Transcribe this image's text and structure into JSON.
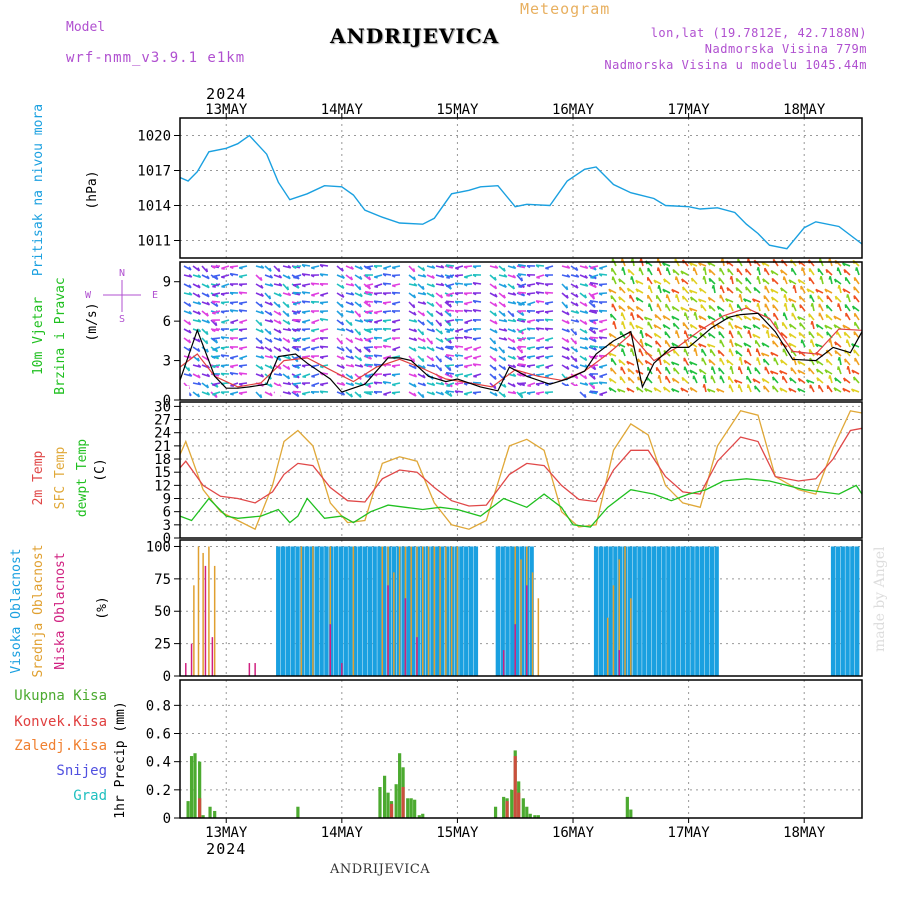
{
  "header": {
    "model_label": "Model",
    "model_name": "wrf-nmm_v3.9.1 e1km",
    "station": "ANDRIJEVICA",
    "meteogram_label": "Meteogram",
    "lonlat": "lon,lat (19.7812E, 42.7188N)",
    "altitude": "Nadmorska Visina 779m",
    "model_altitude": "Nadmorska Visina u modelu 1045.44m"
  },
  "footer": {
    "station": "ANDRIJEVICA",
    "credit": "made by Angel"
  },
  "colors": {
    "pressure": "#1aa0e0",
    "wind_speed": "#000000",
    "gust": "#e04040",
    "t2m": "#e04848",
    "tsfc": "#e0a838",
    "dewpoint": "#20c020",
    "cloud_high": "#1aa0e0",
    "cloud_mid": "#e0a030",
    "cloud_low": "#d02080",
    "rain_total": "#4caa30",
    "rain_conv": "#e04040",
    "rain_frozen": "#f08030",
    "snow": "#5050e0",
    "graupel": "#20c0c0"
  },
  "chart_data": [
    {
      "type": "line",
      "panel": "pressure",
      "ylabel_blue": "Pritisak na nivou mora",
      "ylabel_black": "(hPa)",
      "year": "2024",
      "x_labels": [
        "13MAY",
        "14MAY",
        "15MAY",
        "16MAY",
        "17MAY",
        "18MAY"
      ],
      "x_start_day": 12.6,
      "x_end_day": 18.5,
      "ylim": [
        1009.5,
        1021.5
      ],
      "yticks": [
        1011,
        1014,
        1017,
        1020
      ],
      "series": [
        {
          "x": [
            12.6,
            12.67,
            12.75,
            12.85,
            13.0,
            13.1,
            13.2,
            13.35,
            13.45,
            13.55,
            13.7,
            13.85,
            14.0,
            14.1,
            14.2,
            14.35,
            14.5,
            14.7,
            14.8,
            14.95,
            15.1,
            15.2,
            15.35,
            15.5,
            15.6,
            15.8,
            15.95,
            16.1,
            16.2,
            16.35,
            16.5,
            16.7,
            16.8,
            17.0,
            17.1,
            17.25,
            17.4,
            17.5,
            17.6,
            17.7,
            17.85,
            18.0,
            18.1,
            18.3,
            18.5
          ],
          "y": [
            1016.4,
            1016.1,
            1016.9,
            1018.6,
            1018.9,
            1019.3,
            1020.0,
            1018.4,
            1016.0,
            1014.5,
            1015.0,
            1015.7,
            1015.6,
            1014.9,
            1013.6,
            1013.0,
            1012.5,
            1012.4,
            1012.9,
            1015.0,
            1015.3,
            1015.6,
            1015.7,
            1013.9,
            1014.1,
            1014.0,
            1016.1,
            1017.1,
            1017.3,
            1015.8,
            1015.1,
            1014.6,
            1014.0,
            1013.9,
            1013.7,
            1013.8,
            1013.4,
            1012.4,
            1011.6,
            1010.6,
            1010.3,
            1012.1,
            1012.6,
            1012.2,
            1010.7
          ]
        }
      ]
    },
    {
      "type": "line",
      "panel": "wind",
      "ylabel_green": "10m Vjetar",
      "ylabel_green2": "Brzina i Pravac",
      "ylabel_black": "(m/s)",
      "compass": {
        "n": "N",
        "s": "S",
        "w": "W",
        "e": "E"
      },
      "ylim": [
        0,
        10.5
      ],
      "yticks": [
        0,
        3,
        6,
        9
      ],
      "series": [
        {
          "name": "speed",
          "x": [
            12.6,
            12.75,
            12.9,
            13.0,
            13.1,
            13.2,
            13.35,
            13.45,
            13.6,
            13.7,
            13.9,
            14.0,
            14.2,
            14.4,
            14.5,
            14.6,
            14.75,
            14.9,
            15.0,
            15.2,
            15.35,
            15.45,
            15.6,
            15.8,
            15.95,
            16.1,
            16.2,
            16.35,
            16.5,
            16.6,
            16.7,
            16.85,
            17.0,
            17.2,
            17.35,
            17.45,
            17.6,
            17.75,
            17.9,
            18.1,
            18.25,
            18.4,
            18.5
          ],
          "y": [
            1.5,
            5.3,
            1.8,
            0.9,
            0.9,
            1.0,
            1.2,
            3.3,
            3.5,
            2.8,
            1.6,
            0.6,
            1.2,
            3.2,
            3.2,
            3.0,
            1.8,
            1.4,
            1.6,
            1.0,
            0.7,
            2.5,
            1.8,
            1.2,
            1.6,
            2.2,
            3.5,
            4.5,
            5.2,
            1.0,
            2.8,
            4.0,
            4.0,
            5.5,
            6.3,
            6.5,
            6.6,
            5.2,
            3.1,
            3.0,
            4.0,
            3.6,
            5.2
          ]
        },
        {
          "name": "gust",
          "x": [
            12.6,
            12.75,
            12.9,
            13.1,
            13.3,
            13.5,
            13.7,
            13.9,
            14.1,
            14.3,
            14.5,
            14.7,
            14.9,
            15.1,
            15.3,
            15.5,
            15.7,
            15.9,
            16.1,
            16.3,
            16.5,
            16.7,
            16.9,
            17.1,
            17.3,
            17.5,
            17.7,
            17.9,
            18.1,
            18.3,
            18.5
          ],
          "y": [
            2.5,
            3.5,
            1.8,
            1.0,
            1.3,
            3.0,
            3.2,
            2.3,
            1.4,
            2.5,
            3.1,
            2.4,
            1.6,
            1.3,
            1.0,
            2.3,
            1.8,
            1.5,
            2.2,
            3.5,
            5.0,
            3.0,
            4.0,
            5.3,
            6.4,
            7.0,
            6.2,
            3.7,
            3.5,
            5.4,
            5.3
          ]
        }
      ]
    },
    {
      "type": "line",
      "panel": "temperature",
      "ylabel_red": "2m Temp",
      "ylabel_orange": "SFC Temp",
      "ylabel_green": "dewpt Temp",
      "ylabel_black": "(C)",
      "ylim": [
        0,
        31
      ],
      "yticks": [
        0,
        3,
        6,
        9,
        12,
        15,
        18,
        21,
        24,
        27,
        30
      ],
      "series": [
        {
          "name": "2m Temp",
          "x": [
            12.6,
            12.65,
            12.8,
            12.95,
            13.1,
            13.25,
            13.4,
            13.5,
            13.62,
            13.75,
            13.9,
            14.05,
            14.2,
            14.35,
            14.5,
            14.65,
            14.8,
            14.95,
            15.1,
            15.25,
            15.45,
            15.6,
            15.75,
            15.9,
            16.05,
            16.2,
            16.35,
            16.5,
            16.65,
            16.8,
            16.95,
            17.1,
            17.25,
            17.45,
            17.6,
            17.75,
            17.95,
            18.1,
            18.25,
            18.4,
            18.5
          ],
          "y": [
            16.0,
            17.5,
            12.0,
            9.5,
            9.0,
            8.0,
            10.5,
            14.5,
            17.0,
            16.5,
            11.5,
            8.5,
            8.2,
            13.5,
            15.5,
            15.0,
            11.5,
            8.5,
            7.3,
            7.5,
            14.5,
            17.0,
            16.5,
            12.0,
            8.8,
            8.3,
            15.5,
            20.0,
            20.0,
            14.0,
            10.5,
            10.0,
            17.5,
            23.0,
            22.0,
            14.0,
            13.0,
            13.5,
            18.0,
            24.5,
            25.0
          ]
        },
        {
          "name": "SFC Temp",
          "x": [
            12.6,
            12.65,
            12.8,
            12.95,
            13.1,
            13.25,
            13.4,
            13.5,
            13.62,
            13.75,
            13.9,
            14.05,
            14.2,
            14.35,
            14.5,
            14.65,
            14.8,
            14.95,
            15.1,
            15.25,
            15.45,
            15.6,
            15.75,
            15.9,
            16.05,
            16.2,
            16.35,
            16.5,
            16.65,
            16.8,
            16.95,
            17.1,
            17.25,
            17.45,
            17.6,
            17.75,
            17.95,
            18.1,
            18.25,
            18.4,
            18.5
          ],
          "y": [
            19.0,
            22.0,
            11.0,
            6.0,
            4.0,
            2.0,
            12.0,
            22.0,
            24.5,
            21.0,
            8.0,
            3.5,
            4.0,
            17.0,
            18.5,
            17.5,
            8.0,
            3.0,
            2.0,
            4.0,
            21.0,
            22.5,
            20.0,
            6.0,
            2.5,
            3.0,
            20.0,
            26.0,
            23.5,
            12.0,
            8.0,
            7.0,
            21.0,
            29.0,
            28.0,
            14.0,
            11.0,
            10.0,
            20.5,
            29.0,
            28.5
          ]
        },
        {
          "name": "dewpt Temp",
          "x": [
            12.6,
            12.7,
            12.85,
            13.0,
            13.1,
            13.3,
            13.45,
            13.55,
            13.62,
            13.7,
            13.85,
            14.0,
            14.1,
            14.25,
            14.4,
            14.55,
            14.7,
            14.85,
            15.0,
            15.2,
            15.4,
            15.6,
            15.75,
            15.9,
            16.0,
            16.15,
            16.3,
            16.5,
            16.7,
            16.85,
            17.0,
            17.15,
            17.3,
            17.5,
            17.7,
            17.85,
            18.0,
            18.15,
            18.3,
            18.45,
            18.5
          ],
          "y": [
            5.0,
            4.0,
            9.0,
            5.0,
            4.5,
            5.0,
            6.5,
            3.5,
            5.0,
            9.0,
            4.5,
            5.0,
            3.5,
            6.0,
            7.5,
            7.0,
            6.5,
            7.0,
            6.5,
            5.0,
            9.0,
            7.0,
            10.0,
            7.0,
            3.0,
            2.5,
            7.0,
            11.0,
            10.0,
            8.5,
            10.0,
            11.0,
            13.0,
            13.5,
            13.0,
            12.0,
            11.0,
            10.5,
            10.0,
            12.0,
            10.0
          ]
        }
      ]
    },
    {
      "type": "bar",
      "panel": "clouds",
      "ylabel_blue": "Visoka Oblacnost",
      "ylabel_orange": "Srednja Oblacnost",
      "ylabel_pink": "Niska Oblacnost",
      "ylabel_black": "(%)",
      "ylim": [
        0,
        105
      ],
      "yticks": [
        0,
        25,
        50,
        75,
        100
      ],
      "series": [
        {
          "name": "high",
          "segments": [
            {
              "from": 13.45,
              "to": 15.2,
              "value": 100
            },
            {
              "from": 15.35,
              "to": 15.65,
              "value": 100
            },
            {
              "from": 16.2,
              "to": 17.25,
              "value": 100
            },
            {
              "from": 18.25,
              "to": 18.5,
              "value": 100
            }
          ]
        },
        {
          "name": "mid",
          "x": [
            12.72,
            12.76,
            12.8,
            12.85,
            12.9,
            13.65,
            13.75,
            13.9,
            14.1,
            14.35,
            14.4,
            14.45,
            14.5,
            14.55,
            14.6,
            14.65,
            14.7,
            14.75,
            14.8,
            14.85,
            14.9,
            14.95,
            15.0,
            15.5,
            15.55,
            15.6,
            15.65,
            15.7,
            16.3,
            16.35,
            16.4,
            16.45,
            16.5
          ],
          "y": [
            70,
            100,
            95,
            100,
            85,
            100,
            100,
            100,
            100,
            100,
            100,
            80,
            100,
            100,
            100,
            100,
            100,
            100,
            100,
            100,
            100,
            100,
            100,
            100,
            90,
            100,
            80,
            60,
            45,
            70,
            90,
            100,
            60
          ]
        },
        {
          "name": "low",
          "x": [
            12.65,
            12.7,
            12.82,
            12.88,
            13.2,
            13.25,
            13.9,
            14.0,
            14.4,
            14.55,
            14.65,
            15.4,
            15.5,
            15.6,
            16.4
          ],
          "y": [
            10,
            25,
            85,
            30,
            10,
            10,
            40,
            10,
            70,
            60,
            30,
            20,
            40,
            70,
            20
          ]
        }
      ]
    },
    {
      "type": "bar",
      "panel": "precip",
      "ylabel_black": "1hr Precip (mm)",
      "legend": [
        "Ukupna Kisa",
        "Konvek.Kisa",
        "Zaledj.Kisa",
        "Snijeg",
        "Grad"
      ],
      "ylim": [
        0,
        0.98
      ],
      "yticks": [
        0,
        0.2,
        0.4,
        0.6,
        0.8
      ],
      "series": [
        {
          "name": "Ukupna Kisa",
          "x": [
            12.67,
            12.7,
            12.73,
            12.77,
            12.8,
            12.86,
            12.9,
            13.62,
            14.33,
            14.37,
            14.4,
            14.43,
            14.47,
            14.5,
            14.53,
            14.57,
            14.6,
            14.63,
            14.67,
            14.7,
            15.33,
            15.4,
            15.43,
            15.47,
            15.5,
            15.53,
            15.57,
            15.6,
            15.63,
            15.67,
            15.7,
            16.47,
            16.5
          ],
          "y": [
            0.12,
            0.44,
            0.46,
            0.4,
            0.02,
            0.08,
            0.05,
            0.08,
            0.22,
            0.3,
            0.18,
            0.12,
            0.24,
            0.46,
            0.36,
            0.14,
            0.14,
            0.13,
            0.02,
            0.03,
            0.08,
            0.15,
            0.14,
            0.2,
            0.48,
            0.26,
            0.14,
            0.08,
            0.03,
            0.02,
            0.02,
            0.15,
            0.06
          ]
        },
        {
          "name": "Konvek.Kisa",
          "x": [
            12.77,
            14.43,
            14.53,
            15.43,
            15.5,
            15.53
          ],
          "y": [
            0.14,
            0.1,
            0.22,
            0.12,
            0.44,
            0.18
          ]
        }
      ]
    }
  ]
}
